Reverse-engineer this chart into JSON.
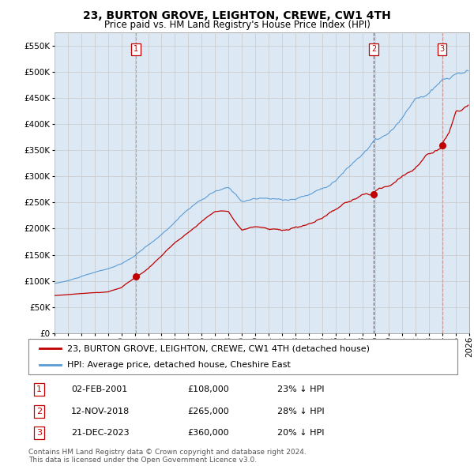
{
  "title": "23, BURTON GROVE, LEIGHTON, CREWE, CW1 4TH",
  "subtitle": "Price paid vs. HM Land Registry's House Price Index (HPI)",
  "ylim": [
    0,
    575000
  ],
  "yticks": [
    0,
    50000,
    100000,
    150000,
    200000,
    250000,
    300000,
    350000,
    400000,
    450000,
    500000,
    550000
  ],
  "xlim_start": 1995.0,
  "xlim_end": 2026.0,
  "hpi_color": "#5b9bd5",
  "price_color": "#c00000",
  "grid_color": "#c8c8c8",
  "plot_bg_color": "#dce9f5",
  "background_color": "#ffffff",
  "legend_label_red": "23, BURTON GROVE, LEIGHTON, CREWE, CW1 4TH (detached house)",
  "legend_label_blue": "HPI: Average price, detached house, Cheshire East",
  "transactions": [
    {
      "num": 1,
      "date": "02-FEB-2001",
      "price": 108000,
      "pct": "23%",
      "x_year": 2001.09
    },
    {
      "num": 2,
      "date": "12-NOV-2018",
      "price": 265000,
      "pct": "28%",
      "x_year": 2018.87
    },
    {
      "num": 3,
      "date": "21-DEC-2023",
      "price": 360000,
      "pct": "20%",
      "x_year": 2023.97
    }
  ],
  "footer": "Contains HM Land Registry data © Crown copyright and database right 2024.\nThis data is licensed under the Open Government Licence v3.0.",
  "title_fontsize": 10,
  "subtitle_fontsize": 8.5,
  "tick_fontsize": 7.5,
  "legend_fontsize": 8,
  "footer_fontsize": 6.5
}
